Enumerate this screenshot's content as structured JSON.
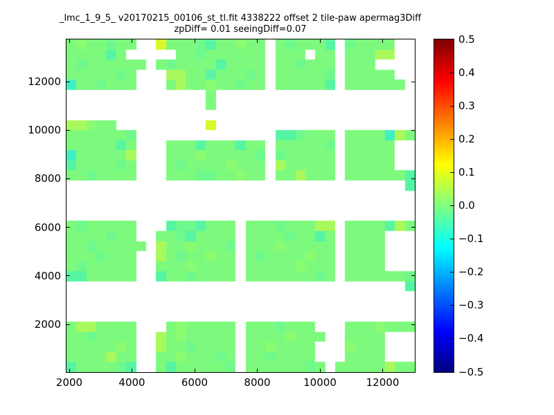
{
  "chart_data": {
    "type": "heatmap",
    "title": "_lmc_1_9_5_ v20170215_00106_st_tl.fit 4338222 offset 2 tile-paw apermag3Diff",
    "subtitle": "zpDiff= 0.01 seeingDiff=0.07",
    "xlabel": "",
    "ylabel": "",
    "x_ticks": [
      2000,
      4000,
      6000,
      8000,
      10000,
      12000
    ],
    "y_ticks": [
      2000,
      4000,
      6000,
      8000,
      10000,
      12000
    ],
    "x_range_px_note": "axes box 503x481 px, grid 35 cols x 33 rows",
    "grid_on": false,
    "colorbar": {
      "min": -0.5,
      "max": 0.5,
      "ticks": [
        0.5,
        0.4,
        0.3,
        0.2,
        0.1,
        0.0,
        -0.1,
        -0.2,
        -0.3,
        -0.4,
        -0.5
      ],
      "colormap": "jet"
    },
    "cell_values": {
      "g": 0.02,
      "h": 0.04,
      "f": 0.0,
      "c": -0.05,
      "C": -0.1,
      "l": 0.08,
      "y": 0.18,
      ".": null
    },
    "palette": {
      "g": "#7dfa7e",
      "h": "#8bfb72",
      "f": "#6ff98c",
      "c": "#57f4a3",
      "C": "#3eefc1",
      "l": "#aaf95c",
      "y": "#d9f82b"
    },
    "grid_cols": 35,
    "grid_rows": 33,
    "grid": [
      "ghggfgg..ygggfcgghgg.gfgggc.fgggg..",
      "ggggcg.....ggfgggggg.ggg.gg.gggll..",
      "gfgggggg.gfggggcgggg.ggfggg.ggg....",
      "gggggfg...llggcgggfg.gggggf.ggggg..",
      "Cggfggg...glgghggfgg.gggggc.gggggg.",
      "..............g....................",
      "..............g....................",
      "...................................",
      "llhgg.........y....................",
      "ggggggf..............ccfggg.ggggClg",
      "gggggcg...gggcgggcgg.gggggf.ggggg..",
      "Cgggggl...ggghgggggf.fggggg.ggggg..",
      "cggggfg...gfgggghggg.lggggg.ggggg..",
      "ggfgggg...gggffgghgg.gglggg.ggggggc",
      "..................................c",
      "...................................",
      "...................................",
      "...................................",
      "gfggggg...cffcggg.gggfgggll.ggggclg",
      "ggggfgg..ggfcgggg.ggggfggcg.gggg...",
      "ggfggggg.lgghgggf.ggghggggg.gggg...",
      "gggfggg..lgfgghgg.gfgggghgg.gggg...",
      "gfggggg..ggghgggg.ggggghggg.gggg...",
      "ccggggg..cggfgggg.gggggggfg.ggggggf",
      "..................................c",
      "...................................",
      "...................................",
      "...................................",
      "gllgggg...ghggggg.gggfggg...ggghggg",
      "ggfgggg..lghggggg.gggghggg..gggg...",
      "ggggghg..lggfgggg.gghgggg...hggg...",
      "gggglgg..gghgggfg.ggfgggg...gggg...",
      "cggggfc..gcgggggf.ggggggfg.ggggglgg"
    ]
  }
}
